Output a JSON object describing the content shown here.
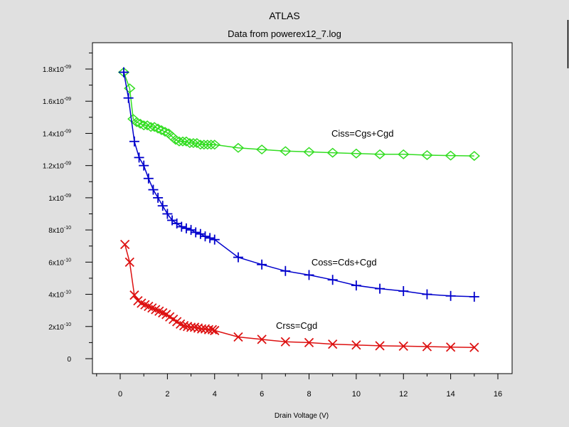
{
  "chart_data": {
    "type": "line",
    "title": "ATLAS",
    "subtitle": "Data from powerex12_7.log",
    "xlabel": "Drain Voltage (V)",
    "ylabel": "",
    "xlim": [
      -1.0,
      16.5
    ],
    "ylim": [
      -1e-10,
      1.9e-09
    ],
    "grid": false,
    "x_ticks": [
      {
        "value": 0,
        "label": "0"
      },
      {
        "value": 2,
        "label": "2"
      },
      {
        "value": 4,
        "label": "4"
      },
      {
        "value": 6,
        "label": "6"
      },
      {
        "value": 8,
        "label": "8"
      },
      {
        "value": 10,
        "label": "10"
      },
      {
        "value": 12,
        "label": "12"
      },
      {
        "value": 14,
        "label": "14"
      },
      {
        "value": 16,
        "label": "16"
      }
    ],
    "y_ticks": [
      {
        "value": 0,
        "mantissa": "0",
        "exponent": ""
      },
      {
        "value": 2e-10,
        "mantissa": "2x10",
        "exponent": "-10"
      },
      {
        "value": 4e-10,
        "mantissa": "4x10",
        "exponent": "-10"
      },
      {
        "value": 6e-10,
        "mantissa": "6x10",
        "exponent": "-10"
      },
      {
        "value": 8e-10,
        "mantissa": "8x10",
        "exponent": "-10"
      },
      {
        "value": 1e-09,
        "mantissa": "1x10",
        "exponent": "-09"
      },
      {
        "value": 1.2e-09,
        "mantissa": "1.2x10",
        "exponent": "-09"
      },
      {
        "value": 1.4e-09,
        "mantissa": "1.4x10",
        "exponent": "-09"
      },
      {
        "value": 1.6e-09,
        "mantissa": "1.6x10",
        "exponent": "-09"
      },
      {
        "value": 1.8e-09,
        "mantissa": "1.8x10",
        "exponent": "-09"
      }
    ],
    "series": [
      {
        "name": "Ciss=Cgs+Cgd",
        "color": "#33dd22",
        "marker": "diamond",
        "x": [
          0.15,
          0.4,
          0.55,
          0.7,
          0.85,
          1.0,
          1.15,
          1.3,
          1.45,
          1.6,
          1.75,
          1.9,
          2.05,
          2.2,
          2.35,
          2.5,
          2.65,
          2.8,
          2.95,
          3.1,
          3.25,
          3.4,
          3.55,
          3.7,
          3.85,
          4.0,
          5.0,
          6.0,
          7.0,
          8.0,
          9.0,
          10.0,
          11.0,
          12.0,
          13.0,
          14.0,
          15.0
        ],
        "y": [
          1.78e-09,
          1.68e-09,
          1.49e-09,
          1.47e-09,
          1.46e-09,
          1.45e-09,
          1.45e-09,
          1.44e-09,
          1.44e-09,
          1.43e-09,
          1.42e-09,
          1.41e-09,
          1.4e-09,
          1.38e-09,
          1.36e-09,
          1.35e-09,
          1.35e-09,
          1.35e-09,
          1.34e-09,
          1.34e-09,
          1.34e-09,
          1.33e-09,
          1.33e-09,
          1.33e-09,
          1.33e-09,
          1.33e-09,
          1.31e-09,
          1.3e-09,
          1.29e-09,
          1.285e-09,
          1.28e-09,
          1.275e-09,
          1.27e-09,
          1.27e-09,
          1.265e-09,
          1.262e-09,
          1.26e-09
        ]
      },
      {
        "name": "Coss=Cds+Cgd",
        "color": "#0000cc",
        "marker": "plus",
        "x": [
          0.15,
          0.35,
          0.6,
          0.8,
          1.0,
          1.2,
          1.4,
          1.6,
          1.8,
          2.0,
          2.2,
          2.4,
          2.6,
          2.8,
          3.0,
          3.2,
          3.4,
          3.6,
          3.8,
          4.0,
          5.0,
          6.0,
          7.0,
          8.0,
          9.0,
          10.0,
          11.0,
          12.0,
          13.0,
          14.0,
          15.0
        ],
        "y": [
          1.78e-09,
          1.62e-09,
          1.35e-09,
          1.25e-09,
          1.2e-09,
          1.12e-09,
          1.05e-09,
          1e-09,
          9.5e-10,
          9e-10,
          8.6e-10,
          8.4e-10,
          8.2e-10,
          8.1e-10,
          8e-10,
          7.85e-10,
          7.75e-10,
          7.6e-10,
          7.5e-10,
          7.4e-10,
          6.3e-10,
          5.85e-10,
          5.45e-10,
          5.2e-10,
          4.9e-10,
          4.55e-10,
          4.35e-10,
          4.2e-10,
          4e-10,
          3.9e-10,
          3.85e-10
        ]
      },
      {
        "name": "Crss=Cgd",
        "color": "#dd1111",
        "marker": "x",
        "x": [
          0.2,
          0.4,
          0.6,
          0.75,
          0.9,
          1.05,
          1.2,
          1.35,
          1.5,
          1.65,
          1.8,
          1.95,
          2.1,
          2.25,
          2.4,
          2.55,
          2.7,
          2.85,
          3.0,
          3.15,
          3.3,
          3.45,
          3.6,
          3.75,
          3.9,
          4.0,
          5.0,
          6.0,
          7.0,
          8.0,
          9.0,
          10.0,
          11.0,
          12.0,
          13.0,
          14.0,
          15.0
        ],
        "y": [
          7.1e-10,
          6e-10,
          3.95e-10,
          3.6e-10,
          3.45e-10,
          3.35e-10,
          3.25e-10,
          3.15e-10,
          3.05e-10,
          2.95e-10,
          2.85e-10,
          2.75e-10,
          2.6e-10,
          2.45e-10,
          2.3e-10,
          2.15e-10,
          2.05e-10,
          2e-10,
          1.95e-10,
          1.95e-10,
          1.9e-10,
          1.85e-10,
          1.85e-10,
          1.8e-10,
          1.8e-10,
          1.75e-10,
          1.35e-10,
          1.2e-10,
          1.05e-10,
          1e-10,
          9e-11,
          8.5e-11,
          8e-11,
          7.8e-11,
          7.5e-11,
          7.2e-11,
          7e-11
        ]
      }
    ],
    "annotations": [
      {
        "text": "Ciss=Cgs+Cgd",
        "x": 8.95,
        "y": 1.38e-09
      },
      {
        "text": "Coss=Cds+Cgd",
        "x": 8.1,
        "y": 5.8e-10
      },
      {
        "text": "Crss=Cgd",
        "x": 6.6,
        "y": 1.85e-10
      }
    ]
  }
}
